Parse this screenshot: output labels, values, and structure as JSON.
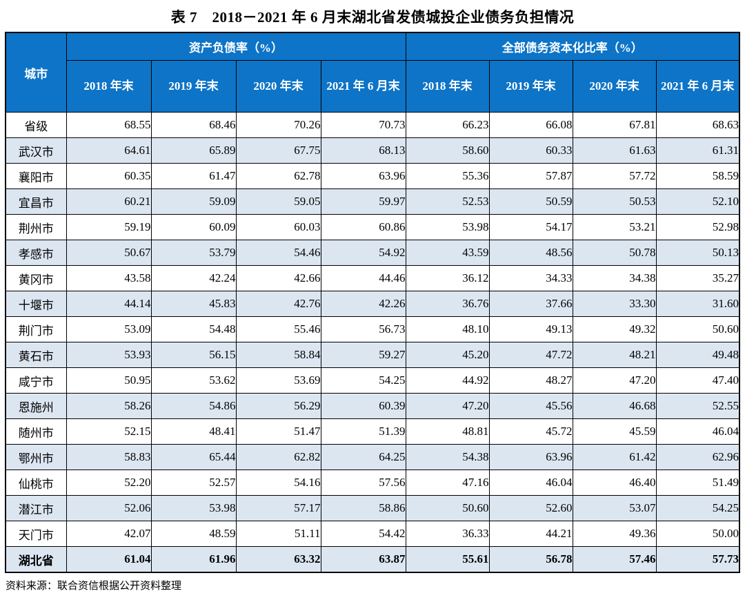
{
  "page": {
    "title": "表 7　2018－2021 年 6 月末湖北省发债城投企业债务负担情况",
    "source": "资料来源：联合资信根据公开资料整理"
  },
  "colors": {
    "header_bg": "#0d74c7",
    "header_text": "#ffffff",
    "alt_row_bg": "#dce6f1",
    "border": "#000000"
  },
  "table": {
    "corner_header": "城市",
    "groups": [
      {
        "label": "资产负债率（%）",
        "columns": [
          "2018 年末",
          "2019 年末",
          "2020 年末",
          "2021 年 6 月末"
        ]
      },
      {
        "label": "全部债务资本化比率（%）",
        "columns": [
          "2018 年末",
          "2019 年末",
          "2020 年末",
          "2021 年 6 月末"
        ]
      }
    ],
    "rows": [
      {
        "city": "省级",
        "bold": false,
        "values": [
          "68.55",
          "68.46",
          "70.26",
          "70.73",
          "66.23",
          "66.08",
          "67.81",
          "68.63"
        ]
      },
      {
        "city": "武汉市",
        "bold": false,
        "values": [
          "64.61",
          "65.89",
          "67.75",
          "68.13",
          "58.60",
          "60.33",
          "61.63",
          "61.31"
        ]
      },
      {
        "city": "襄阳市",
        "bold": false,
        "values": [
          "60.35",
          "61.47",
          "62.78",
          "63.96",
          "55.36",
          "57.87",
          "57.72",
          "58.59"
        ]
      },
      {
        "city": "宜昌市",
        "bold": false,
        "values": [
          "60.21",
          "59.09",
          "59.05",
          "59.97",
          "52.53",
          "50.59",
          "50.53",
          "52.10"
        ]
      },
      {
        "city": "荆州市",
        "bold": false,
        "values": [
          "59.19",
          "60.09",
          "60.03",
          "60.86",
          "53.98",
          "54.17",
          "53.21",
          "52.98"
        ]
      },
      {
        "city": "孝感市",
        "bold": false,
        "values": [
          "50.67",
          "53.79",
          "54.46",
          "54.92",
          "43.59",
          "48.56",
          "50.78",
          "50.13"
        ]
      },
      {
        "city": "黄冈市",
        "bold": false,
        "values": [
          "43.58",
          "42.24",
          "42.66",
          "44.46",
          "36.12",
          "34.33",
          "34.38",
          "35.27"
        ]
      },
      {
        "city": "十堰市",
        "bold": false,
        "values": [
          "44.14",
          "45.83",
          "42.76",
          "42.26",
          "36.76",
          "37.66",
          "33.30",
          "31.60"
        ]
      },
      {
        "city": "荆门市",
        "bold": false,
        "values": [
          "53.09",
          "54.48",
          "55.46",
          "56.73",
          "48.10",
          "49.13",
          "49.32",
          "50.60"
        ]
      },
      {
        "city": "黄石市",
        "bold": false,
        "values": [
          "53.93",
          "56.15",
          "58.84",
          "59.27",
          "45.20",
          "47.72",
          "48.21",
          "49.48"
        ]
      },
      {
        "city": "咸宁市",
        "bold": false,
        "values": [
          "50.95",
          "53.62",
          "53.69",
          "54.25",
          "44.92",
          "48.27",
          "47.20",
          "47.40"
        ]
      },
      {
        "city": "恩施州",
        "bold": false,
        "values": [
          "58.26",
          "54.86",
          "56.29",
          "60.39",
          "47.20",
          "45.56",
          "46.68",
          "52.55"
        ]
      },
      {
        "city": "随州市",
        "bold": false,
        "values": [
          "52.15",
          "48.41",
          "51.47",
          "51.39",
          "48.81",
          "45.72",
          "45.59",
          "46.04"
        ]
      },
      {
        "city": "鄂州市",
        "bold": false,
        "values": [
          "58.83",
          "65.44",
          "62.82",
          "64.25",
          "54.38",
          "63.96",
          "61.42",
          "62.96"
        ]
      },
      {
        "city": "仙桃市",
        "bold": false,
        "values": [
          "52.20",
          "52.57",
          "54.16",
          "57.56",
          "47.16",
          "46.04",
          "46.40",
          "51.49"
        ]
      },
      {
        "city": "潜江市",
        "bold": false,
        "values": [
          "52.06",
          "53.98",
          "57.17",
          "58.86",
          "50.60",
          "52.60",
          "53.07",
          "54.25"
        ]
      },
      {
        "city": "天门市",
        "bold": false,
        "values": [
          "42.07",
          "48.59",
          "51.11",
          "54.42",
          "36.33",
          "44.21",
          "49.36",
          "50.00"
        ]
      },
      {
        "city": "湖北省",
        "bold": true,
        "values": [
          "61.04",
          "61.96",
          "63.32",
          "63.87",
          "55.61",
          "56.78",
          "57.46",
          "57.73"
        ]
      }
    ]
  }
}
